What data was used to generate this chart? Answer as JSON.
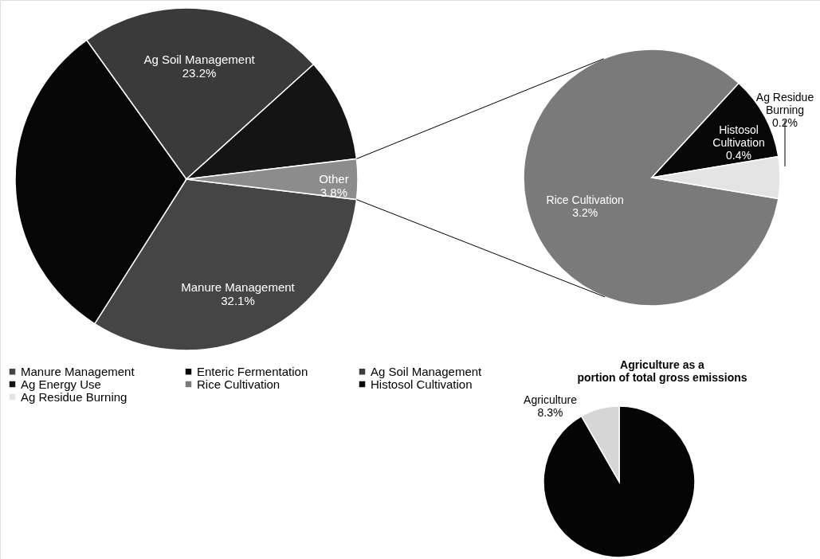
{
  "chart_data": [
    {
      "type": "pie",
      "categories": [
        "Manure Management",
        "Enteric Fermentation",
        "Ag Soil Management",
        "Ag Energy Use",
        "Other"
      ],
      "values": [
        32.1,
        31.1,
        23.2,
        9.8,
        3.8
      ],
      "colors": [
        "#454545",
        "#060606",
        "#3a3a3a",
        "#141414",
        "#8c8c8c"
      ],
      "value_labels": [
        "32.1%",
        null,
        "23.2%",
        null,
        "3.8%"
      ],
      "legend": "bottom"
    },
    {
      "type": "pie",
      "categories": [
        "Rice Cultivation",
        "Histosol Cultivation",
        "Ag Residue Burning"
      ],
      "values": [
        3.2,
        0.4,
        0.2
      ],
      "colors": [
        "#7a7a7a",
        "#080808",
        "#e4e4e4"
      ],
      "value_labels": [
        "3.2%",
        "0.4%",
        "0.2%"
      ],
      "legend": "bottom left"
    },
    {
      "type": "pie",
      "title": "Agriculture as a portion of total gross emissions",
      "categories": [
        null,
        "Agriculture"
      ],
      "values": [
        91.7,
        8.3
      ],
      "colors": [
        "#050505",
        "#d6d6d6"
      ],
      "value_labels": [
        null,
        "8.3%"
      ]
    }
  ]
}
